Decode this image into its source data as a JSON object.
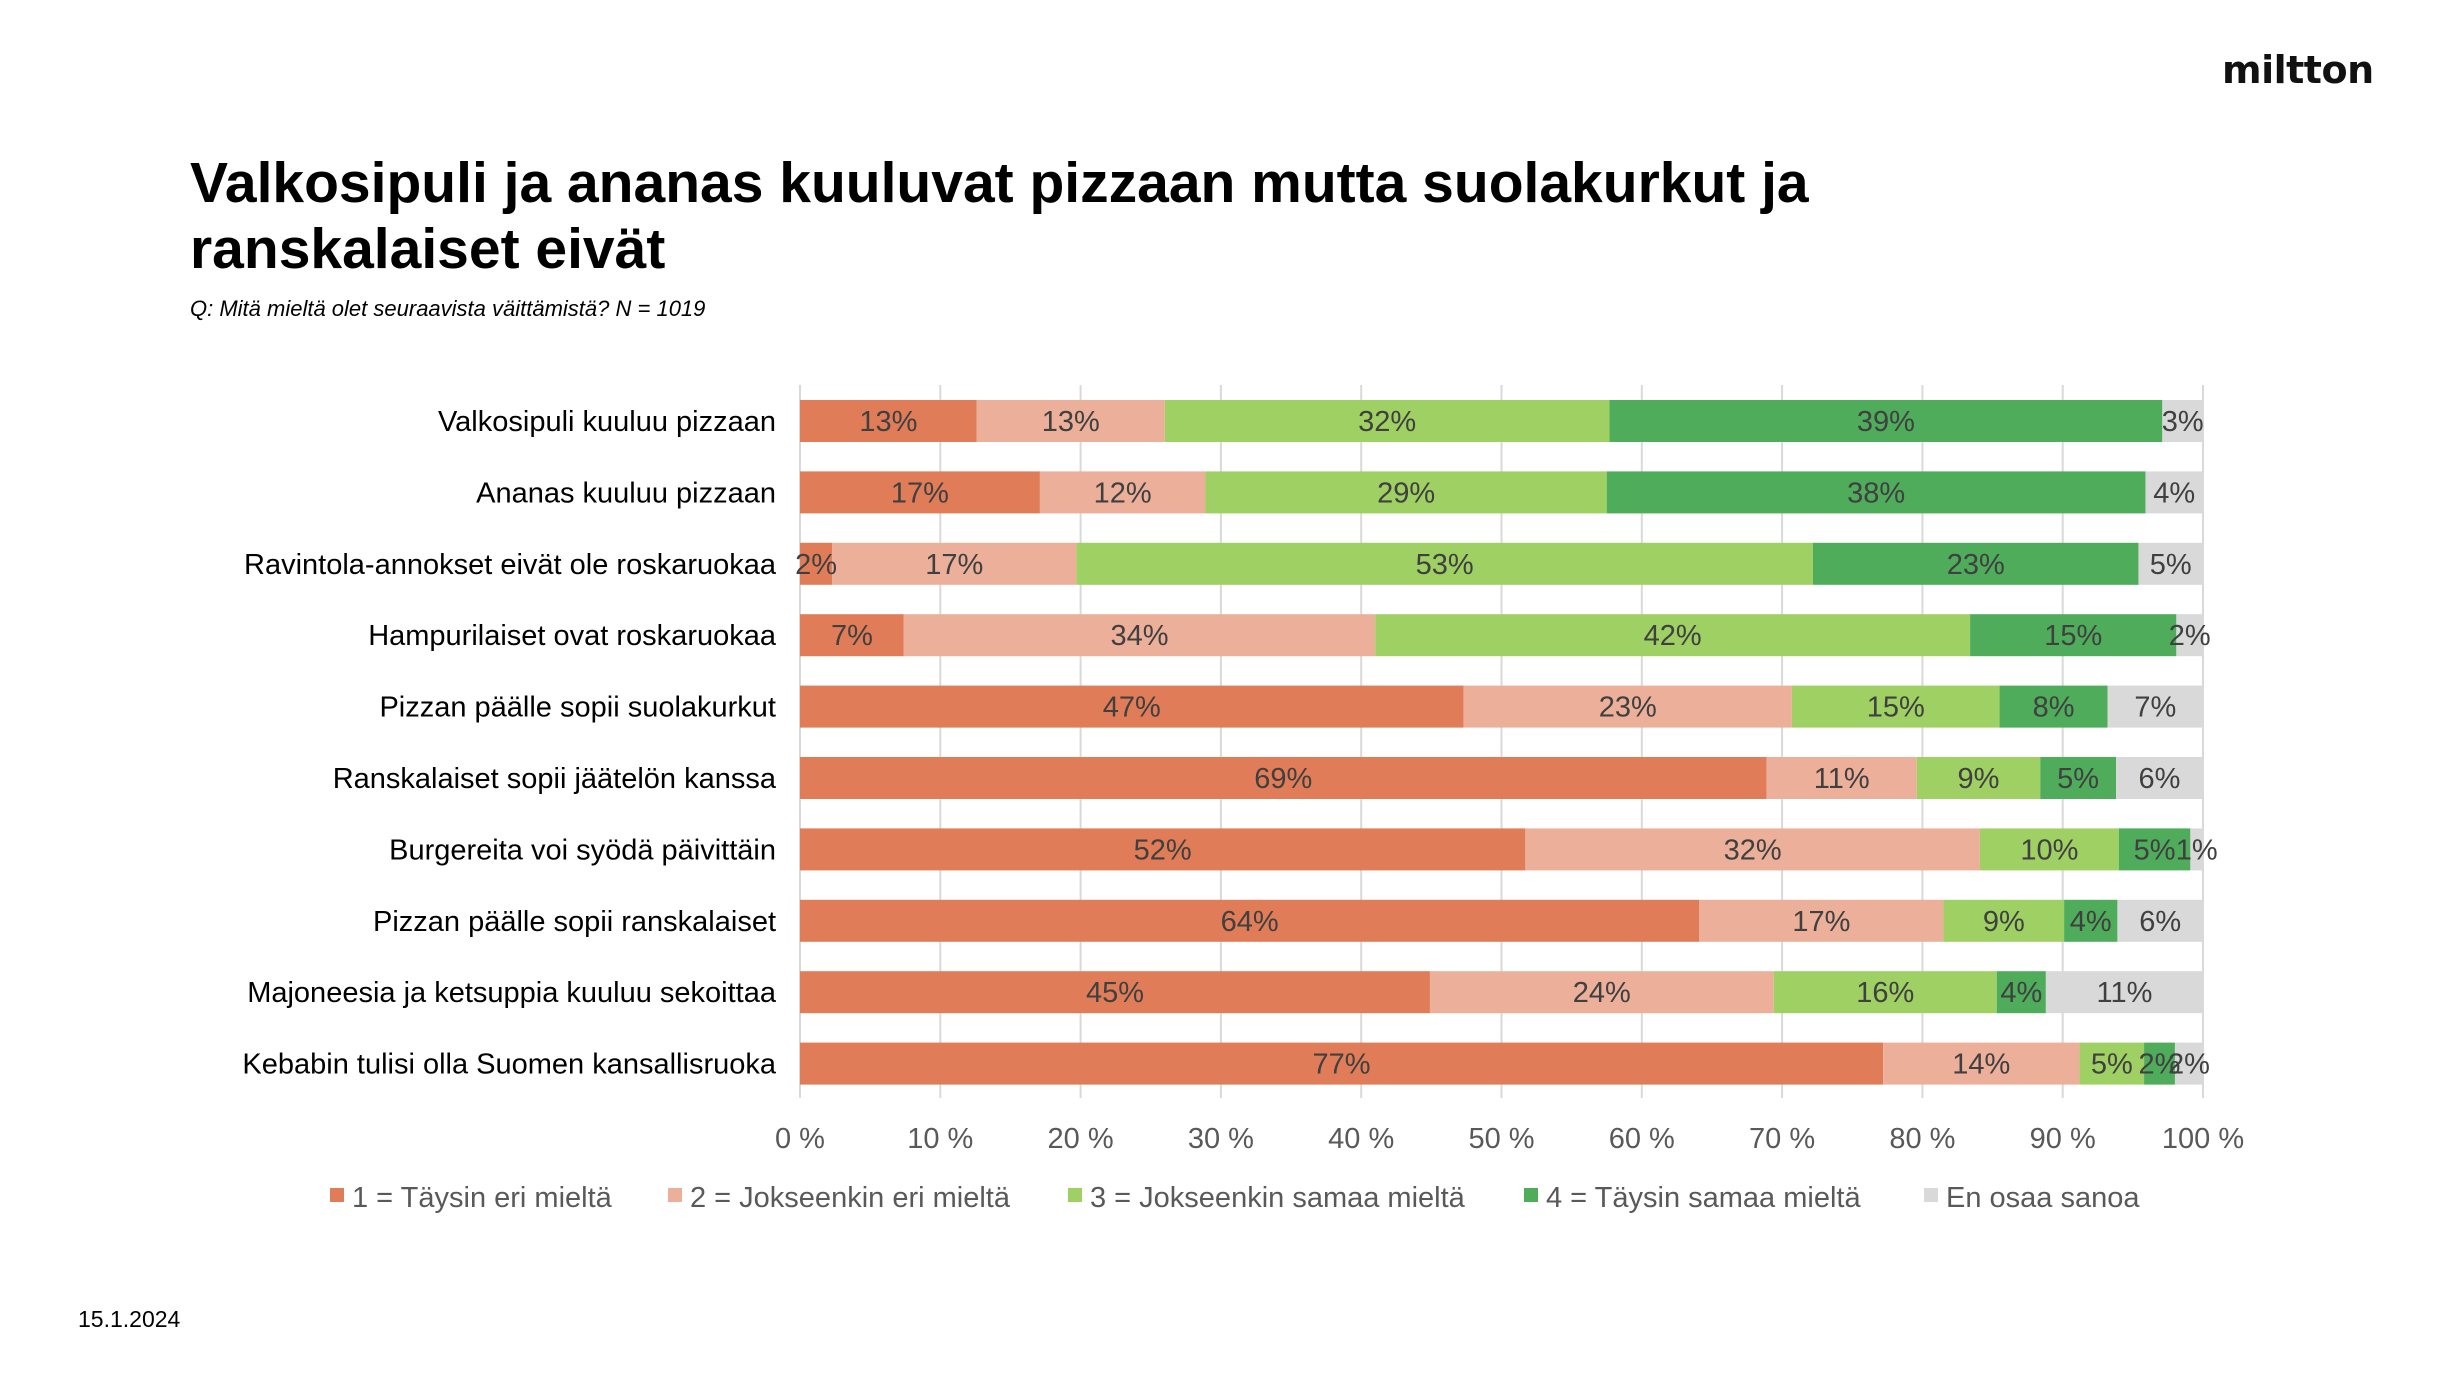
{
  "header": {
    "logo": "miltton",
    "title": "Valkosipuli ja ananas kuuluvat pizzaan mutta suolakurkut ja ranskalaiset eivät",
    "question": "Q:  Mitä mieltä olet seuraavista väittämistä? N = 1019"
  },
  "footer": {
    "date": "15.1.2024"
  },
  "chart_data": {
    "type": "bar",
    "orientation": "horizontal",
    "stacked": "percent",
    "title": "Valkosipuli ja ananas kuuluvat pizzaan mutta suolakurkut ja ranskalaiset eivät",
    "xlabel": "",
    "ylabel": "",
    "xlim": [
      0,
      100
    ],
    "x_ticks": [
      "0 %",
      "10 %",
      "20 %",
      "30 %",
      "40 %",
      "50 %",
      "60 %",
      "70 %",
      "80 %",
      "90 %",
      "100 %"
    ],
    "grid": "vertical",
    "legend_position": "bottom",
    "categories": [
      "Valkosipuli kuuluu pizzaan",
      "Ananas kuuluu pizzaan",
      "Ravintola-annokset eivät ole roskaruokaa",
      "Hampurilaiset ovat roskaruokaa",
      "Pizzan päälle sopii suolakurkut",
      "Ranskalaiset sopii jäätelön kanssa",
      "Burgereita voi syödä päivittäin",
      "Pizzan päälle sopii ranskalaiset",
      "Majoneesia ja ketsuppia kuuluu sekoittaa",
      "Kebabin tulisi olla Suomen kansallisruoka"
    ],
    "series": [
      {
        "name": "1 = Täysin eri mieltä",
        "color": "#E07D58",
        "values": [
          12.6,
          17.1,
          2.3,
          7.4,
          47.3,
          68.9,
          51.7,
          64.1,
          44.9,
          77.2
        ]
      },
      {
        "name": "2 = Jokseenkin eri mieltä",
        "color": "#ECB09A",
        "values": [
          13.4,
          11.8,
          17.4,
          33.6,
          23.4,
          10.7,
          32.4,
          17.4,
          24.5,
          14.0
        ]
      },
      {
        "name": "3 = Jokseenkin samaa mieltä",
        "color": "#9FD063",
        "values": [
          31.7,
          28.6,
          52.5,
          42.4,
          14.8,
          8.8,
          9.9,
          8.6,
          15.9,
          4.6
        ]
      },
      {
        "name": "4 = Täysin samaa mieltä",
        "color": "#4EAC5B",
        "values": [
          39.4,
          38.4,
          23.2,
          14.7,
          7.7,
          5.4,
          5.1,
          3.8,
          3.5,
          2.2
        ]
      },
      {
        "name": "En osaa sanoa",
        "color": "#D9D9D9",
        "values": [
          2.9,
          4.1,
          4.6,
          1.9,
          6.8,
          6.2,
          0.9,
          6.1,
          11.2,
          2.0
        ]
      }
    ],
    "data_labels": [
      [
        "13%",
        "13%",
        "32%",
        "39%",
        "3%"
      ],
      [
        "17%",
        "12%",
        "29%",
        "38%",
        "4%"
      ],
      [
        "2%",
        "17%",
        "53%",
        "23%",
        "5%"
      ],
      [
        "7%",
        "34%",
        "42%",
        "15%",
        "2%"
      ],
      [
        "47%",
        "23%",
        "15%",
        "8%",
        "7%"
      ],
      [
        "69%",
        "11%",
        "9%",
        "5%",
        "6%"
      ],
      [
        "52%",
        "32%",
        "10%",
        "5%",
        "1%"
      ],
      [
        "64%",
        "17%",
        "9%",
        "4%",
        "6%"
      ],
      [
        "45%",
        "24%",
        "16%",
        "4%",
        "11%"
      ],
      [
        "77%",
        "14%",
        "5%",
        "2%",
        "2%"
      ]
    ]
  }
}
